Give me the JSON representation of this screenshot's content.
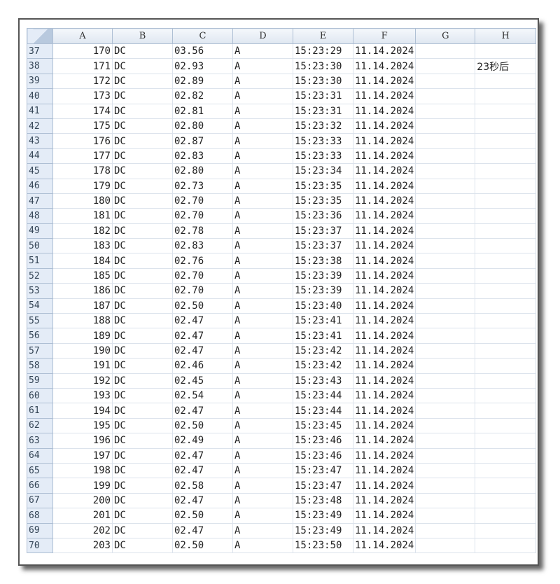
{
  "columns": [
    "A",
    "B",
    "C",
    "D",
    "E",
    "F",
    "G",
    "H"
  ],
  "rows": [
    {
      "n": "37",
      "a": "170",
      "b": "DC",
      "c": "03.56",
      "d": "A",
      "e": "15:23:29",
      "f": "11.14.2024",
      "h": ""
    },
    {
      "n": "38",
      "a": "171",
      "b": "DC",
      "c": "02.93",
      "d": "A",
      "e": "15:23:30",
      "f": "11.14.2024",
      "h": "23秒后"
    },
    {
      "n": "39",
      "a": "172",
      "b": "DC",
      "c": "02.89",
      "d": "A",
      "e": "15:23:30",
      "f": "11.14.2024",
      "h": ""
    },
    {
      "n": "40",
      "a": "173",
      "b": "DC",
      "c": "02.82",
      "d": "A",
      "e": "15:23:31",
      "f": "11.14.2024",
      "h": ""
    },
    {
      "n": "41",
      "a": "174",
      "b": "DC",
      "c": "02.81",
      "d": "A",
      "e": "15:23:31",
      "f": "11.14.2024",
      "h": ""
    },
    {
      "n": "42",
      "a": "175",
      "b": "DC",
      "c": "02.80",
      "d": "A",
      "e": "15:23:32",
      "f": "11.14.2024",
      "h": ""
    },
    {
      "n": "43",
      "a": "176",
      "b": "DC",
      "c": "02.87",
      "d": "A",
      "e": "15:23:33",
      "f": "11.14.2024",
      "h": ""
    },
    {
      "n": "44",
      "a": "177",
      "b": "DC",
      "c": "02.83",
      "d": "A",
      "e": "15:23:33",
      "f": "11.14.2024",
      "h": ""
    },
    {
      "n": "45",
      "a": "178",
      "b": "DC",
      "c": "02.80",
      "d": "A",
      "e": "15:23:34",
      "f": "11.14.2024",
      "h": ""
    },
    {
      "n": "46",
      "a": "179",
      "b": "DC",
      "c": "02.73",
      "d": "A",
      "e": "15:23:35",
      "f": "11.14.2024",
      "h": ""
    },
    {
      "n": "47",
      "a": "180",
      "b": "DC",
      "c": "02.70",
      "d": "A",
      "e": "15:23:35",
      "f": "11.14.2024",
      "h": ""
    },
    {
      "n": "48",
      "a": "181",
      "b": "DC",
      "c": "02.70",
      "d": "A",
      "e": "15:23:36",
      "f": "11.14.2024",
      "h": ""
    },
    {
      "n": "49",
      "a": "182",
      "b": "DC",
      "c": "02.78",
      "d": "A",
      "e": "15:23:37",
      "f": "11.14.2024",
      "h": ""
    },
    {
      "n": "50",
      "a": "183",
      "b": "DC",
      "c": "02.83",
      "d": "A",
      "e": "15:23:37",
      "f": "11.14.2024",
      "h": ""
    },
    {
      "n": "51",
      "a": "184",
      "b": "DC",
      "c": "02.76",
      "d": "A",
      "e": "15:23:38",
      "f": "11.14.2024",
      "h": ""
    },
    {
      "n": "52",
      "a": "185",
      "b": "DC",
      "c": "02.70",
      "d": "A",
      "e": "15:23:39",
      "f": "11.14.2024",
      "h": ""
    },
    {
      "n": "53",
      "a": "186",
      "b": "DC",
      "c": "02.70",
      "d": "A",
      "e": "15:23:39",
      "f": "11.14.2024",
      "h": ""
    },
    {
      "n": "54",
      "a": "187",
      "b": "DC",
      "c": "02.50",
      "d": "A",
      "e": "15:23:40",
      "f": "11.14.2024",
      "h": ""
    },
    {
      "n": "55",
      "a": "188",
      "b": "DC",
      "c": "02.47",
      "d": "A",
      "e": "15:23:41",
      "f": "11.14.2024",
      "h": ""
    },
    {
      "n": "56",
      "a": "189",
      "b": "DC",
      "c": "02.47",
      "d": "A",
      "e": "15:23:41",
      "f": "11.14.2024",
      "h": ""
    },
    {
      "n": "57",
      "a": "190",
      "b": "DC",
      "c": "02.47",
      "d": "A",
      "e": "15:23:42",
      "f": "11.14.2024",
      "h": ""
    },
    {
      "n": "58",
      "a": "191",
      "b": "DC",
      "c": "02.46",
      "d": "A",
      "e": "15:23:42",
      "f": "11.14.2024",
      "h": ""
    },
    {
      "n": "59",
      "a": "192",
      "b": "DC",
      "c": "02.45",
      "d": "A",
      "e": "15:23:43",
      "f": "11.14.2024",
      "h": ""
    },
    {
      "n": "60",
      "a": "193",
      "b": "DC",
      "c": "02.54",
      "d": "A",
      "e": "15:23:44",
      "f": "11.14.2024",
      "h": ""
    },
    {
      "n": "61",
      "a": "194",
      "b": "DC",
      "c": "02.47",
      "d": "A",
      "e": "15:23:44",
      "f": "11.14.2024",
      "h": ""
    },
    {
      "n": "62",
      "a": "195",
      "b": "DC",
      "c": "02.50",
      "d": "A",
      "e": "15:23:45",
      "f": "11.14.2024",
      "h": ""
    },
    {
      "n": "63",
      "a": "196",
      "b": "DC",
      "c": "02.49",
      "d": "A",
      "e": "15:23:46",
      "f": "11.14.2024",
      "h": ""
    },
    {
      "n": "64",
      "a": "197",
      "b": "DC",
      "c": "02.47",
      "d": "A",
      "e": "15:23:46",
      "f": "11.14.2024",
      "h": ""
    },
    {
      "n": "65",
      "a": "198",
      "b": "DC",
      "c": "02.47",
      "d": "A",
      "e": "15:23:47",
      "f": "11.14.2024",
      "h": ""
    },
    {
      "n": "66",
      "a": "199",
      "b": "DC",
      "c": "02.58",
      "d": "A",
      "e": "15:23:47",
      "f": "11.14.2024",
      "h": ""
    },
    {
      "n": "67",
      "a": "200",
      "b": "DC",
      "c": "02.47",
      "d": "A",
      "e": "15:23:48",
      "f": "11.14.2024",
      "h": ""
    },
    {
      "n": "68",
      "a": "201",
      "b": "DC",
      "c": "02.50",
      "d": "A",
      "e": "15:23:49",
      "f": "11.14.2024",
      "h": ""
    },
    {
      "n": "69",
      "a": "202",
      "b": "DC",
      "c": "02.47",
      "d": "A",
      "e": "15:23:49",
      "f": "11.14.2024",
      "h": ""
    },
    {
      "n": "70",
      "a": "203",
      "b": "DC",
      "c": "02.50",
      "d": "A",
      "e": "15:23:50",
      "f": "11.14.2024",
      "h": ""
    }
  ]
}
